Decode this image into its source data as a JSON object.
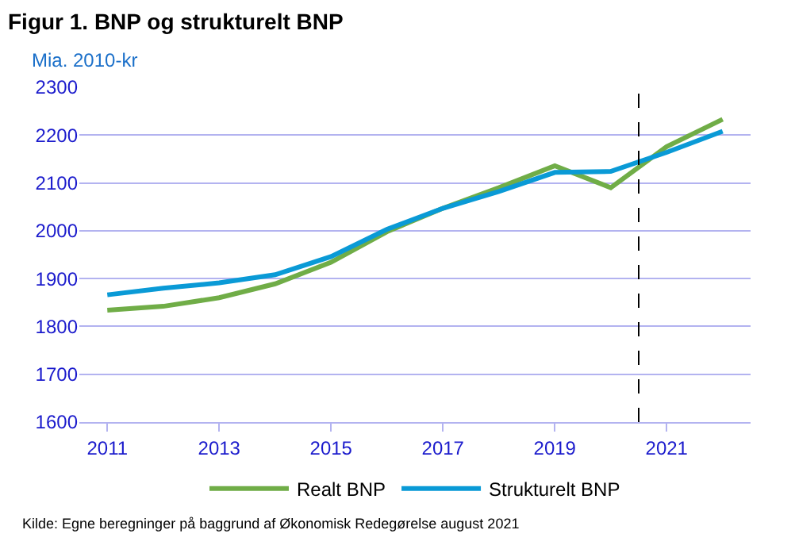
{
  "chart_data": {
    "type": "line",
    "title": "Figur 1. BNP og strukturelt BNP",
    "ylabel": "Mia. 2010-kr",
    "annotations": [
      "Kilde: Egne beregninger på baggrund af Økonomisk Redegørelse august 2021"
    ],
    "x": [
      2011,
      2012,
      2013,
      2014,
      2015,
      2016,
      2017,
      2018,
      2019,
      2020,
      2021,
      2022
    ],
    "series": [
      {
        "name": "Realt BNP",
        "color": "#70ad47",
        "values": [
          1834,
          1842,
          1860,
          1889,
          1934,
          1998,
          2047,
          2090,
          2136,
          2090,
          2176,
          2233
        ]
      },
      {
        "name": "Strukturelt BNP",
        "color": "#0a9ad6",
        "values": [
          1866,
          1880,
          1891,
          1908,
          1946,
          2003,
          2047,
          2082,
          2122,
          2124,
          2164,
          2208
        ]
      }
    ],
    "xlim": [
      2010.5,
      2022.5
    ],
    "xticks": [
      2011,
      2013,
      2015,
      2017,
      2019,
      2021
    ],
    "ylim": [
      1600,
      2300
    ],
    "yticks": [
      1600,
      1700,
      1800,
      1900,
      2000,
      2100,
      2200,
      2300
    ],
    "ref_lines": [
      {
        "axis": "x",
        "value": 2020.5,
        "color": "#000000",
        "line_style": "dashed"
      }
    ],
    "grid": "y",
    "legend": "bottom",
    "marker": "none",
    "line_style": "solid"
  }
}
